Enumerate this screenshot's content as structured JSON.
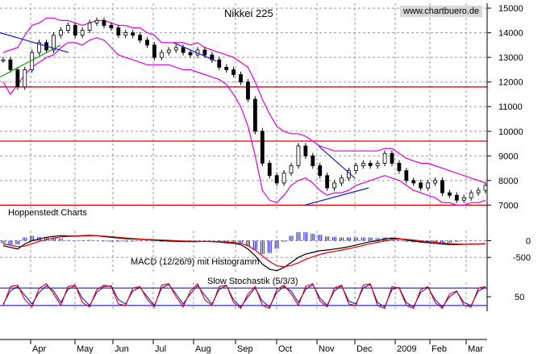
{
  "chart_data": [
    {
      "type": "line",
      "subtype": "candlestick",
      "title": "Nikkei 225",
      "source": "www.chartbuero.de",
      "note": "Hoppenstedt Charts",
      "y_ticks": [
        7000,
        8000,
        9000,
        10000,
        11000,
        12000,
        13000,
        14000,
        15000
      ],
      "ylim": [
        6750,
        15200
      ],
      "x_labels": [
        "Apr",
        "May",
        "Jun",
        "Jul",
        "Aug",
        "Sep",
        "Oct",
        "Nov",
        "Dec",
        "2009",
        "Feb",
        "Mar"
      ],
      "grid": true,
      "horizontal_lines": [
        11800,
        9600,
        7000
      ],
      "series": [
        {
          "values": [
            12900,
            12500,
            11800,
            12500,
            13200,
            13600,
            13300,
            13900,
            14100,
            14300,
            13900,
            14100,
            14400,
            14500,
            14300,
            14200,
            13900,
            14000,
            13900,
            13700,
            13500,
            13000,
            13200,
            13300,
            13400,
            13200,
            13100,
            13300,
            13100,
            12900,
            12600,
            12500,
            12300,
            12000,
            11300,
            10000,
            8700,
            8200,
            7900,
            8300,
            8600,
            9400,
            9000,
            8600,
            8200,
            7700,
            7900,
            8100,
            8400,
            8600,
            8700,
            8600,
            8700,
            9100,
            8700,
            8400,
            8000,
            7900,
            7700,
            7900,
            8000,
            7500,
            7400,
            7200,
            7300,
            7500,
            7600,
            7800
          ]
        },
        {
          "values": [
            13200,
            13300,
            13400,
            13900,
            14300,
            14400,
            14600,
            14600,
            14500,
            14500,
            14400,
            14300,
            14400,
            14500,
            14500,
            14400,
            14300,
            14300,
            14200,
            14200,
            14000,
            13900,
            13600,
            13600,
            13600,
            13600,
            13500,
            13600,
            13400,
            13300,
            13200,
            13100,
            13000,
            12800,
            12600,
            12000,
            11300,
            10700,
            10200,
            10000,
            9900,
            9900,
            9800,
            9600,
            9400,
            9300,
            9200,
            9200,
            9200,
            9200,
            9200,
            9200,
            9200,
            9300,
            9300,
            9100,
            8900,
            8800,
            8700,
            8700,
            8600,
            8500,
            8400,
            8300,
            8200,
            8100,
            8000,
            7900
          ]
        },
        {
          "values": [
            12000,
            11500,
            11900,
            12300,
            12600,
            12800,
            13000,
            13100,
            13400,
            13600,
            13600,
            13500,
            13700,
            13800,
            13700,
            13400,
            13100,
            13000,
            12900,
            12800,
            12700,
            12700,
            12700,
            12700,
            12600,
            12500,
            12500,
            12400,
            12300,
            12200,
            12100,
            11900,
            11500,
            11000,
            10200,
            9000,
            7600,
            7200,
            7100,
            7400,
            7800,
            8000,
            8100,
            7900,
            7600,
            7400,
            7500,
            7500,
            7600,
            7800,
            7900,
            8000,
            8100,
            8200,
            8100,
            8000,
            7800,
            7600,
            7500,
            7400,
            7300,
            7100,
            7100,
            7000,
            7000,
            7100,
            7100,
            7200
          ]
        }
      ]
    },
    {
      "type": "line",
      "title": "MACD (12/26/9) mit Histogramm",
      "y_ticks": [
        0,
        -500
      ],
      "ylim": [
        -1000,
        300
      ],
      "series": [
        {
          "values": [
            -150,
            -200,
            -250,
            -100,
            0,
            50,
            100,
            130,
            150,
            140,
            140,
            150,
            160,
            150,
            120,
            100,
            80,
            60,
            50,
            40,
            30,
            20,
            0,
            -10,
            -20,
            -30,
            -30,
            -30,
            -20,
            -30,
            -40,
            -60,
            -80,
            -120,
            -250,
            -450,
            -700,
            -850,
            -900,
            -800,
            -650,
            -500,
            -400,
            -350,
            -300,
            -280,
            -250,
            -220,
            -180,
            -130,
            -80,
            -30,
            0,
            50,
            80,
            60,
            20,
            -10,
            -40,
            -60,
            -80,
            -100,
            -120,
            -120,
            -110,
            -100,
            -100,
            -90
          ]
        },
        {
          "values": [
            -100,
            -130,
            -180,
            -160,
            -90,
            -20,
            30,
            80,
            110,
            130,
            135,
            140,
            145,
            145,
            135,
            120,
            100,
            80,
            65,
            50,
            40,
            30,
            20,
            10,
            0,
            -10,
            -15,
            -20,
            -20,
            -25,
            -30,
            -40,
            -55,
            -80,
            -150,
            -280,
            -450,
            -620,
            -750,
            -780,
            -740,
            -660,
            -560,
            -480,
            -410,
            -360,
            -320,
            -280,
            -240,
            -190,
            -140,
            -90,
            -50,
            -10,
            30,
            50,
            40,
            20,
            -5,
            -25,
            -45,
            -65,
            -85,
            -100,
            -105,
            -105,
            -100,
            -95
          ]
        }
      ]
    },
    {
      "type": "line",
      "title": "Slow Stochastik (5/3/3)",
      "y_ticks": [
        50
      ],
      "ylim": [
        0,
        100
      ],
      "horizontal_lines": [
        80,
        20
      ],
      "series": [
        {
          "values": [
            20,
            85,
            90,
            40,
            15,
            80,
            95,
            60,
            20,
            85,
            90,
            30,
            15,
            75,
            90,
            85,
            25,
            20,
            80,
            85,
            40,
            15,
            90,
            95,
            50,
            15,
            70,
            95,
            40,
            20,
            85,
            90,
            30,
            10,
            60,
            85,
            20,
            10,
            75,
            90,
            60,
            20,
            85,
            95,
            35,
            15,
            80,
            90,
            25,
            20,
            90,
            95,
            20,
            10,
            85,
            80,
            20,
            10,
            75,
            85,
            30,
            10,
            60,
            70,
            20,
            15,
            80,
            85
          ]
        },
        {
          "values": [
            25,
            70,
            85,
            55,
            25,
            65,
            88,
            70,
            30,
            75,
            88,
            45,
            20,
            65,
            85,
            88,
            40,
            25,
            70,
            82,
            50,
            20,
            80,
            92,
            60,
            25,
            60,
            88,
            55,
            25,
            75,
            88,
            40,
            15,
            50,
            80,
            35,
            15,
            65,
            85,
            70,
            30,
            75,
            92,
            45,
            20,
            70,
            88,
            35,
            25,
            80,
            92,
            30,
            15,
            75,
            82,
            30,
            15,
            65,
            82,
            40,
            15,
            50,
            68,
            30,
            20,
            70,
            82
          ]
        }
      ]
    }
  ]
}
